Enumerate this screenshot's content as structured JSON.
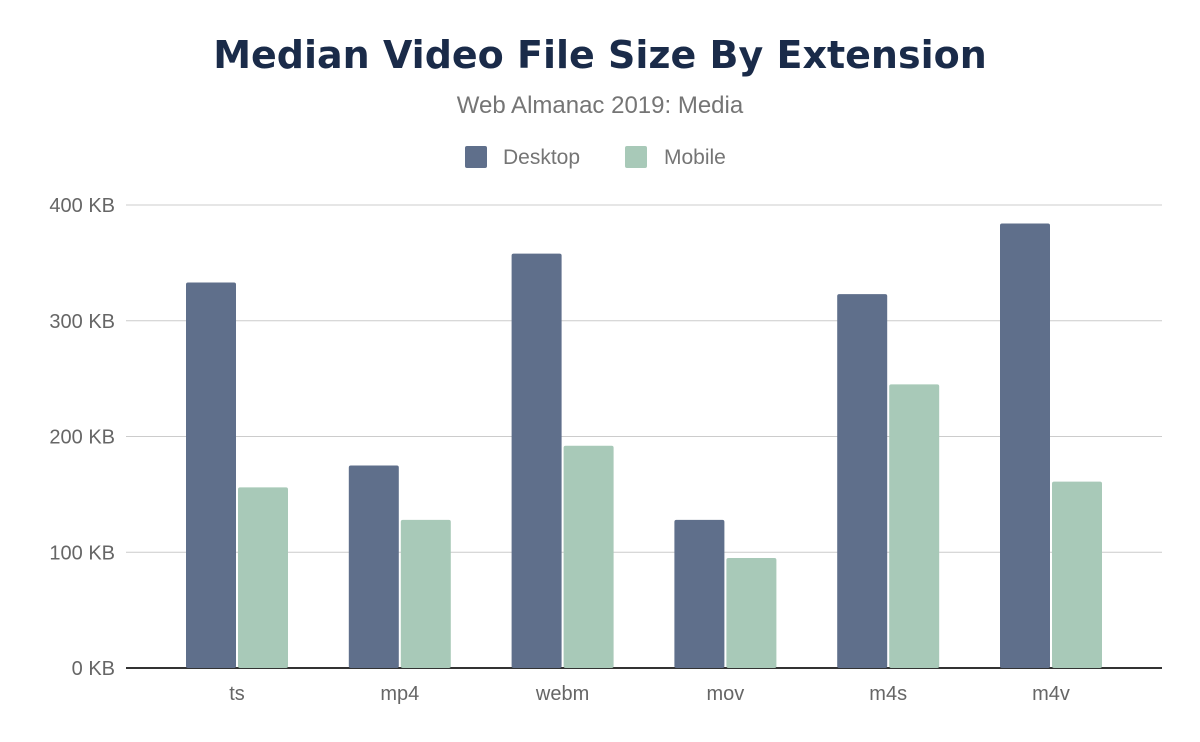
{
  "chart_data": {
    "type": "bar",
    "title": "Median Video File Size By Extension",
    "subtitle": "Web Almanac 2019: Media",
    "categories": [
      "ts",
      "mp4",
      "webm",
      "mov",
      "m4s",
      "m4v"
    ],
    "series": [
      {
        "name": "Desktop",
        "color": "#5f6f8b",
        "values": [
          333,
          175,
          358,
          128,
          323,
          384
        ]
      },
      {
        "name": "Mobile",
        "color": "#a8c9b8",
        "values": [
          156,
          128,
          192,
          95,
          245,
          161
        ]
      }
    ],
    "xlabel": "",
    "ylabel": "",
    "unit": "KB",
    "ylim": [
      0,
      400
    ],
    "yticks": [
      "0 KB",
      "100 KB",
      "200 KB",
      "300 KB",
      "400 KB"
    ],
    "grid": true,
    "legend": "top-center",
    "title_color": "#1a2b49"
  }
}
